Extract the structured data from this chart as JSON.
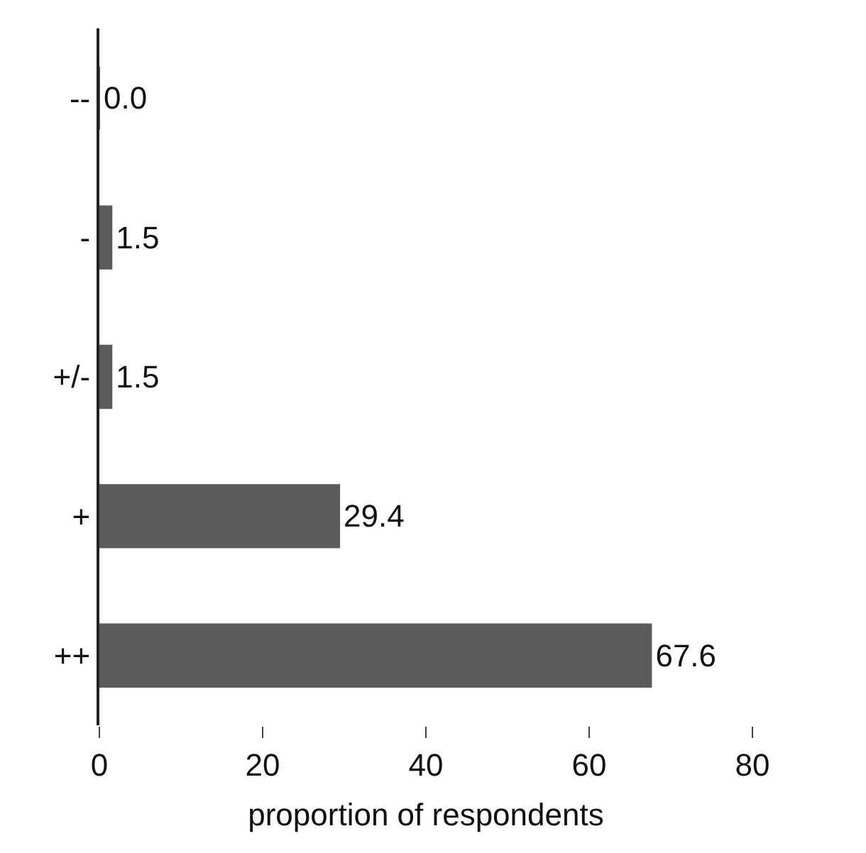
{
  "chart_data": {
    "type": "bar",
    "orientation": "horizontal",
    "xlabel": "proportion of respondents",
    "categories": [
      "--",
      "-",
      "+/-",
      "+",
      "++"
    ],
    "values": [
      0.0,
      1.5,
      1.5,
      29.4,
      67.6
    ],
    "value_labels": [
      "0.0",
      "1.5",
      "1.5",
      "29.4",
      "67.6"
    ],
    "color": "#5b5b5b",
    "xlim": [
      0,
      80
    ],
    "xticks": [
      0,
      20,
      40,
      60,
      80
    ],
    "legend": false
  }
}
